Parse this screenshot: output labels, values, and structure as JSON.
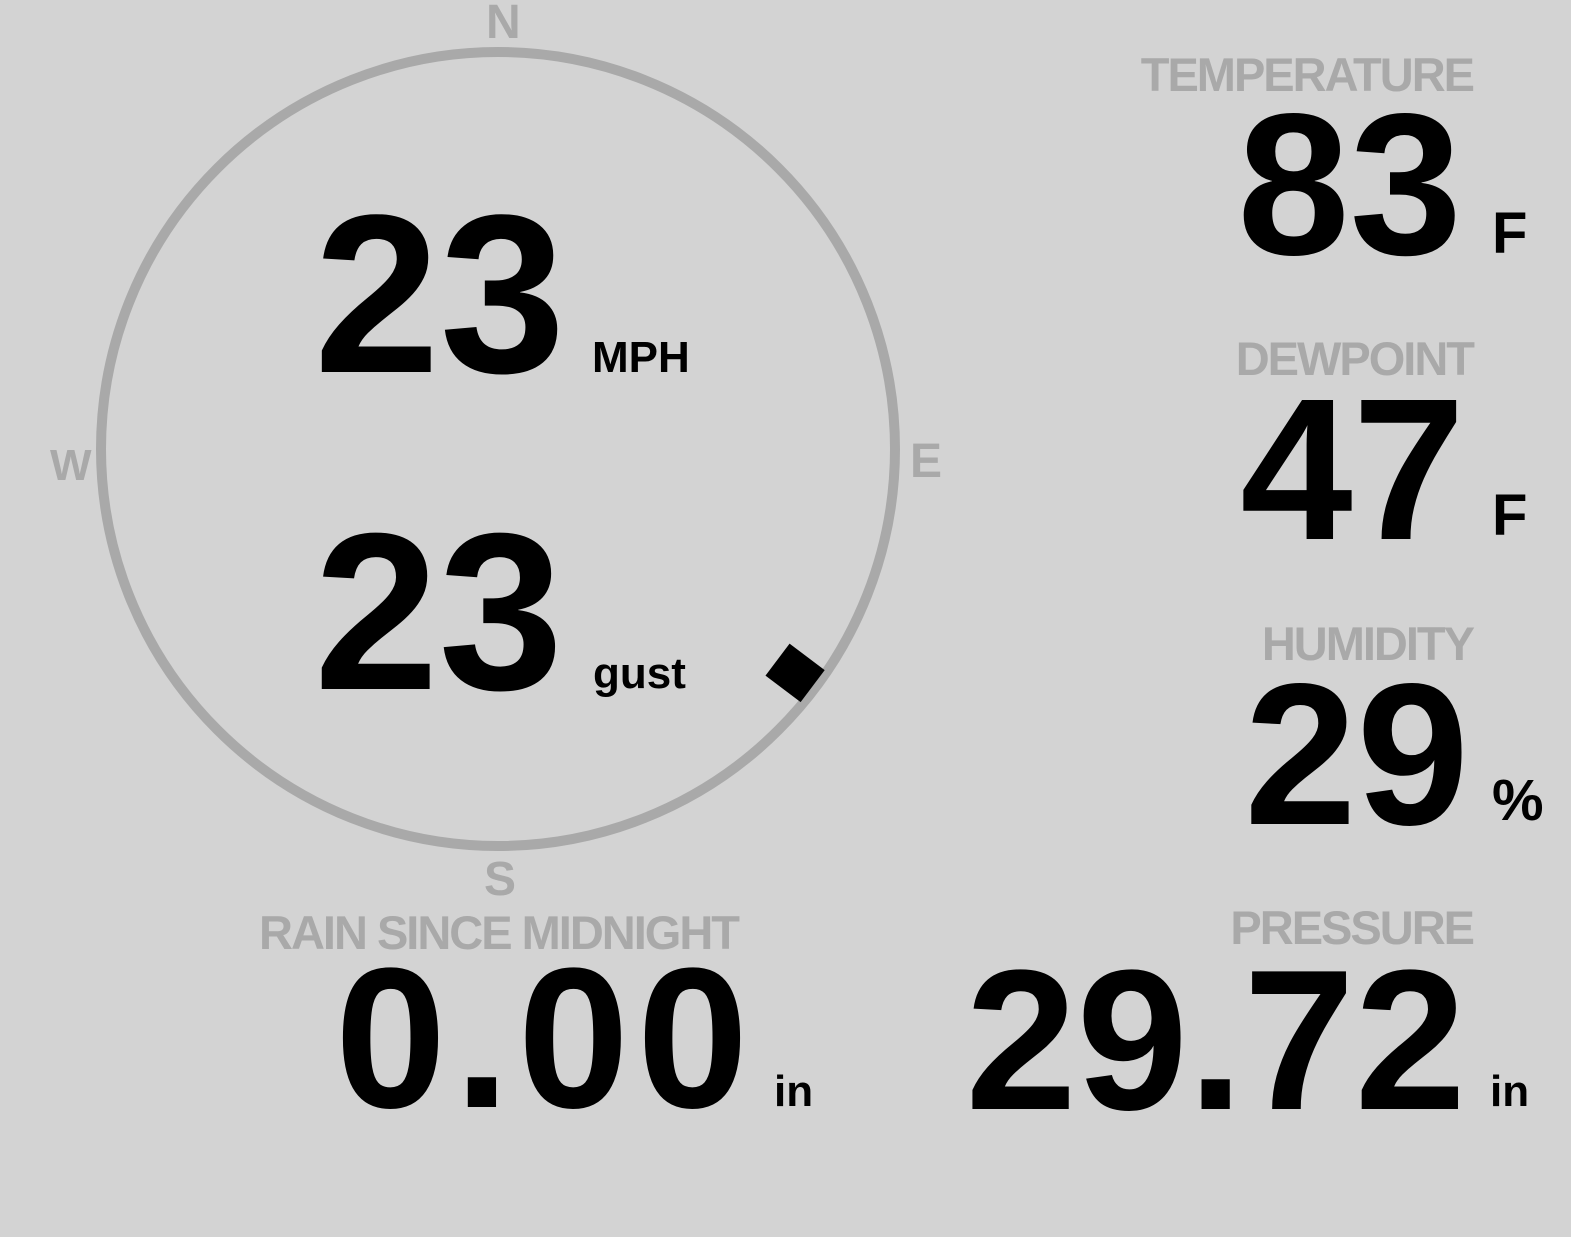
{
  "compass": {
    "north": "N",
    "south": "S",
    "east": "E",
    "west": "W",
    "direction_deg": 127
  },
  "wind": {
    "speed": "23",
    "speed_unit": "MPH",
    "gust": "23",
    "gust_unit": "gust"
  },
  "temperature": {
    "label": "TEMPERATURE",
    "value": "83",
    "unit": "F"
  },
  "dewpoint": {
    "label": "DEWPOINT",
    "value": "47",
    "unit": "F"
  },
  "humidity": {
    "label": "HUMIDITY",
    "value": "29",
    "unit": "%"
  },
  "rain": {
    "label": "RAIN SINCE MIDNIGHT",
    "value": "0.00",
    "unit": "in"
  },
  "pressure": {
    "label": "PRESSURE",
    "value": "29.72",
    "unit": "in"
  },
  "colors": {
    "background": "#d3d3d3",
    "label": "#a9a9a9",
    "value": "#000000",
    "ring": "#a9a9a9"
  }
}
